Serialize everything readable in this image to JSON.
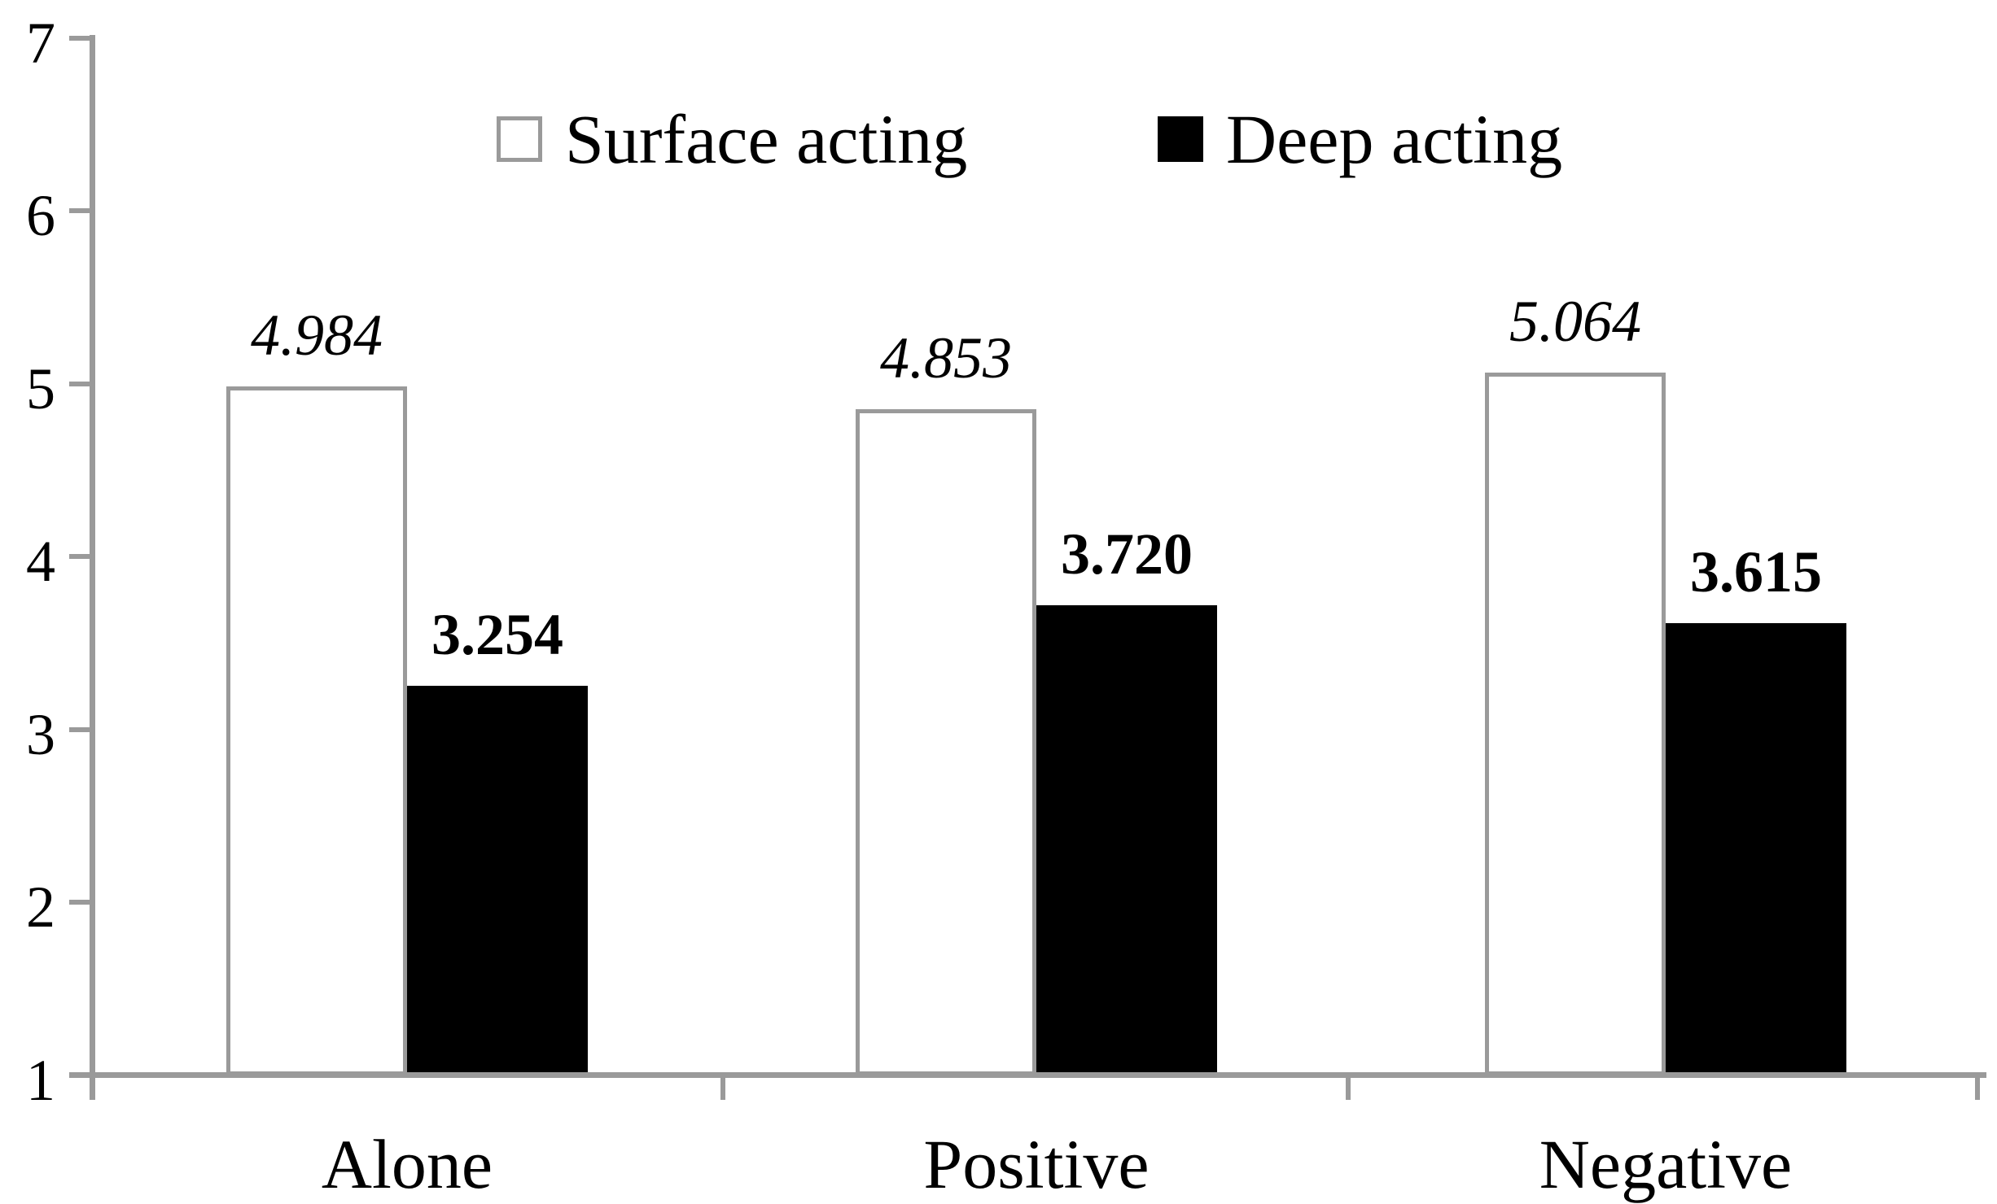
{
  "chart_data": {
    "type": "bar",
    "title": "",
    "xlabel": "",
    "ylabel": "",
    "categories": [
      "Alone",
      "Positive",
      "Negative"
    ],
    "series": [
      {
        "name": "Surface acting",
        "values": [
          4.984,
          4.853,
          5.064
        ],
        "labels": [
          "4.984",
          "4.853",
          "5.064"
        ],
        "fill": "#ffffff",
        "border": "#9a9a9a",
        "label_style": "italic"
      },
      {
        "name": "Deep acting",
        "values": [
          3.254,
          3.72,
          3.615
        ],
        "labels": [
          "3.254",
          "3.720",
          "3.615"
        ],
        "fill": "#000000",
        "border": "#000000",
        "label_style": "bold"
      }
    ],
    "ylim": [
      1,
      7
    ],
    "yticks": [
      1,
      2,
      3,
      4,
      5,
      6,
      7
    ],
    "grid": false,
    "legend": {
      "position": "top",
      "entries": [
        "Surface acting",
        "Deep acting"
      ]
    },
    "colors": {
      "axis": "#9a9a9a",
      "text": "#000000",
      "background": "#ffffff"
    }
  }
}
